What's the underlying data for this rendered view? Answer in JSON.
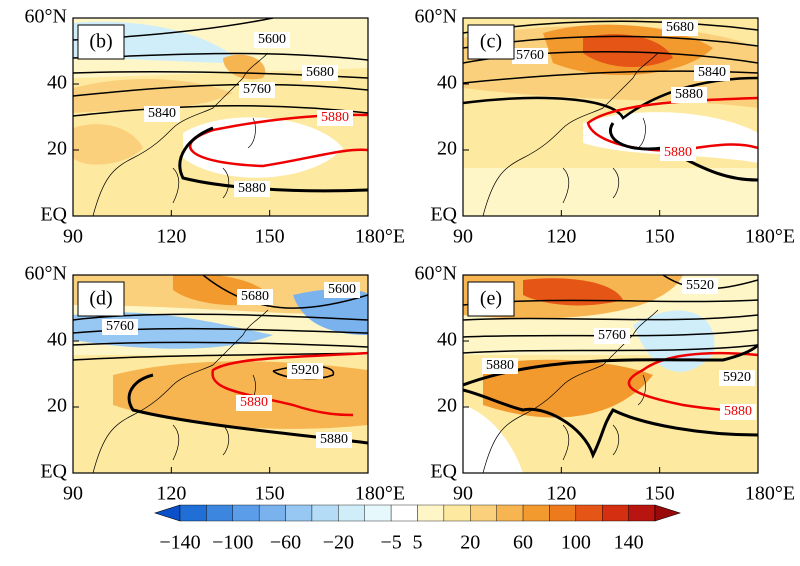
{
  "panels": [
    {
      "label": "(b)",
      "contour_labels": [
        "5600",
        "5680",
        "5760",
        "5840",
        "5880",
        "5880"
      ]
    },
    {
      "label": "(c)",
      "contour_labels": [
        "5680",
        "5760",
        "5840",
        "5880",
        "5880"
      ]
    },
    {
      "label": "(d)",
      "contour_labels": [
        "5680",
        "5600",
        "5760",
        "5920",
        "5880",
        "5880"
      ]
    },
    {
      "label": "(e)",
      "contour_labels": [
        "5520",
        "5760",
        "5880",
        "5920",
        "5880"
      ]
    }
  ],
  "axes": {
    "x_ticks": [
      "90",
      "120",
      "150",
      "180°E"
    ],
    "y_ticks": [
      "60°N",
      "40",
      "20",
      "EQ"
    ]
  },
  "colorbar": {
    "labels": [
      "−140",
      "−100",
      "−60",
      "−20",
      "−5",
      "5",
      "20",
      "60",
      "100",
      "140"
    ],
    "colors": [
      "#0a50c8",
      "#1f6fd6",
      "#3d86e0",
      "#5b9de8",
      "#7ab2ee",
      "#97c8f3",
      "#b4dcf7",
      "#cfeefa",
      "#e6f8fc",
      "#ffffff",
      "#fff6c8",
      "#fde9a0",
      "#fbd07c",
      "#f7b552",
      "#f39a2e",
      "#ee7a1e",
      "#e55515",
      "#d32f10",
      "#b81510",
      "#9b0a0a"
    ]
  }
}
